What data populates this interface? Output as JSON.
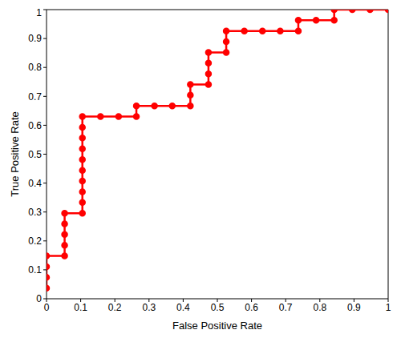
{
  "chart_data": {
    "type": "line",
    "x_label": "False Positive Rate",
    "y_label": "True Positive Rate",
    "x": [
      0,
      0,
      0,
      0,
      0.053,
      0.053,
      0.053,
      0.053,
      0.053,
      0.105,
      0.105,
      0.105,
      0.105,
      0.105,
      0.105,
      0.105,
      0.105,
      0.105,
      0.105,
      0.158,
      0.211,
      0.263,
      0.263,
      0.316,
      0.368,
      0.421,
      0.421,
      0.421,
      0.474,
      0.474,
      0.474,
      0.474,
      0.526,
      0.526,
      0.526,
      0.579,
      0.632,
      0.684,
      0.737,
      0.737,
      0.789,
      0.842,
      0.842,
      0.895,
      0.947,
      1
    ],
    "values": [
      0.037,
      0.074,
      0.111,
      0.148,
      0.148,
      0.185,
      0.222,
      0.259,
      0.296,
      0.296,
      0.333,
      0.37,
      0.407,
      0.444,
      0.481,
      0.519,
      0.556,
      0.593,
      0.63,
      0.63,
      0.63,
      0.63,
      0.667,
      0.667,
      0.667,
      0.667,
      0.704,
      0.741,
      0.741,
      0.778,
      0.815,
      0.852,
      0.852,
      0.889,
      0.926,
      0.926,
      0.926,
      0.926,
      0.926,
      0.963,
      0.963,
      0.963,
      1,
      1,
      1,
      1
    ],
    "color": "#ff0000",
    "marker": "circle",
    "xlim": [
      0,
      1
    ],
    "ylim": [
      0,
      1
    ],
    "xticks": [
      0,
      0.1,
      0.2,
      0.3,
      0.4,
      0.5,
      0.6,
      0.7,
      0.8,
      0.9,
      1
    ],
    "yticks": [
      0,
      0.1,
      0.2,
      0.3,
      0.4,
      0.5,
      0.6,
      0.7,
      0.8,
      0.9,
      1
    ],
    "grid": false
  }
}
